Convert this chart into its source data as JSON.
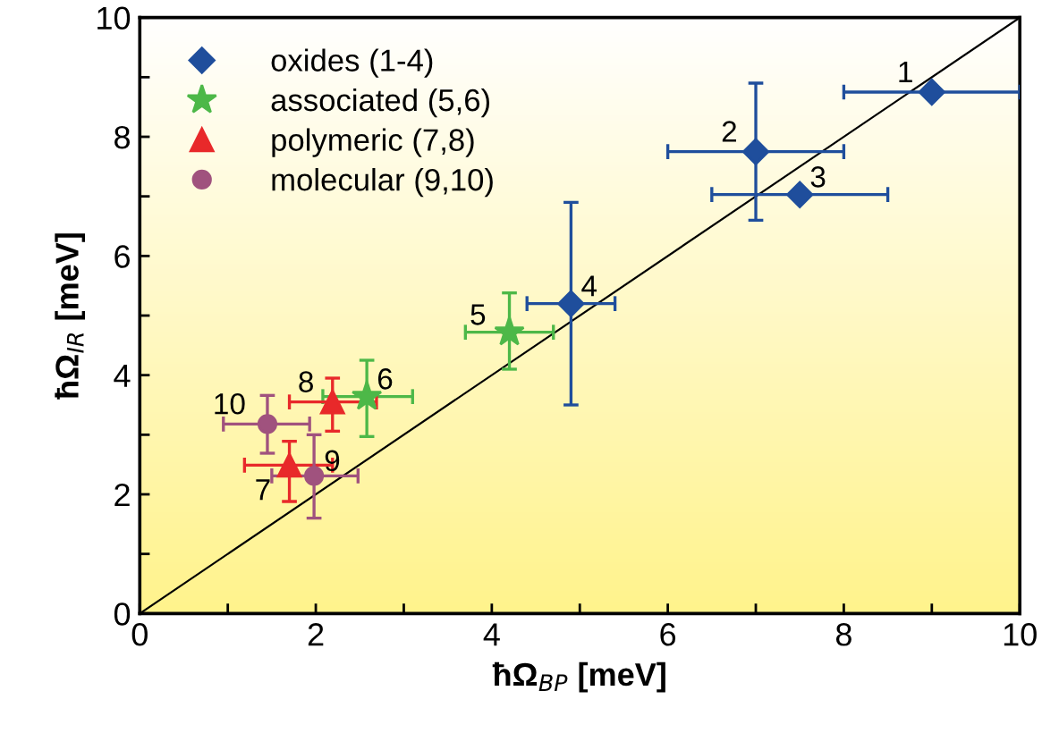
{
  "chart_data": {
    "type": "scatter",
    "xlabel": "ħΩ$_{BP}$ [meV]",
    "ylabel": "ħΩ$_{IR}$ [meV]",
    "xlim": [
      0,
      10
    ],
    "ylim": [
      0,
      10
    ],
    "xticks": [
      0,
      {
        "value": 1,
        "label": null
      },
      2,
      {
        "value": 3,
        "label": null
      },
      4,
      {
        "value": 5,
        "label": null
      },
      6,
      {
        "value": 7,
        "label": null
      },
      8,
      {
        "value": 9,
        "label": null
      },
      10
    ],
    "yticks": [
      0,
      {
        "value": 1,
        "label": null
      },
      2,
      {
        "value": 3,
        "label": null
      },
      4,
      {
        "value": 5,
        "label": null
      },
      6,
      {
        "value": 7,
        "label": null
      },
      8,
      {
        "value": 9,
        "label": null
      },
      10
    ],
    "grid": false,
    "legend": "top left",
    "series": [
      {
        "name": "oxides (1-4)",
        "color": "#1f4e9c",
        "marker": "diamond",
        "x": [
          9.0,
          7.0,
          7.5,
          4.9
        ],
        "values": [
          8.75,
          7.75,
          7.03,
          5.2
        ],
        "xerrors": [
          [
            8.0,
            10.0
          ],
          [
            6.0,
            8.0
          ],
          [
            6.5,
            8.5
          ],
          [
            4.4,
            5.4
          ]
        ],
        "errors": [
          null,
          [
            6.6,
            8.9
          ],
          null,
          [
            3.5,
            6.9
          ]
        ]
      },
      {
        "name": "associated (5,6)",
        "color": "#4db848",
        "marker": "star",
        "x": [
          4.2,
          2.58
        ],
        "values": [
          4.72,
          3.64
        ],
        "xerrors": [
          [
            3.7,
            4.7
          ],
          [
            2.08,
            3.1
          ]
        ],
        "errors": [
          [
            4.1,
            5.38
          ],
          [
            2.97,
            4.25
          ]
        ]
      },
      {
        "name": "polymeric (7,8)",
        "color": "#e8292a",
        "marker": "triangle",
        "x": [
          1.7,
          2.19
        ],
        "values": [
          2.49,
          3.55
        ],
        "xerrors": [
          [
            1.19,
            2.19
          ],
          [
            1.7,
            2.69
          ]
        ],
        "errors": [
          [
            1.88,
            2.89
          ],
          [
            3.06,
            3.95
          ]
        ]
      },
      {
        "name": "molecular (9,10)",
        "color": "#a0527e",
        "marker": "circle",
        "x": [
          1.98,
          1.45
        ],
        "values": [
          2.31,
          3.18
        ],
        "xerrors": [
          [
            1.5,
            2.48
          ],
          [
            0.95,
            1.93
          ]
        ],
        "errors": [
          [
            1.6,
            3.0
          ],
          [
            2.69,
            3.66
          ]
        ]
      },
      {
        "type": "line",
        "color": "#000000",
        "x": [
          0,
          10
        ],
        "values": [
          0,
          10
        ]
      }
    ],
    "annotations": [
      {
        "text": "1",
        "x": 9.0,
        "y": 8.75
      },
      {
        "text": "2",
        "x": 7.0,
        "y": 7.75
      },
      {
        "text": "3",
        "x": 7.5,
        "y": 7.03
      },
      {
        "text": "4",
        "x": 4.9,
        "y": 5.2
      },
      {
        "text": "5",
        "x": 4.2,
        "y": 4.72
      },
      {
        "text": "6",
        "x": 2.58,
        "y": 3.64
      },
      {
        "text": "7",
        "x": 1.7,
        "y": 2.49
      },
      {
        "text": "8",
        "x": 2.19,
        "y": 3.55
      },
      {
        "text": "9",
        "x": 1.98,
        "y": 2.31
      },
      {
        "text": "10",
        "x": 1.45,
        "y": 3.18
      }
    ]
  }
}
